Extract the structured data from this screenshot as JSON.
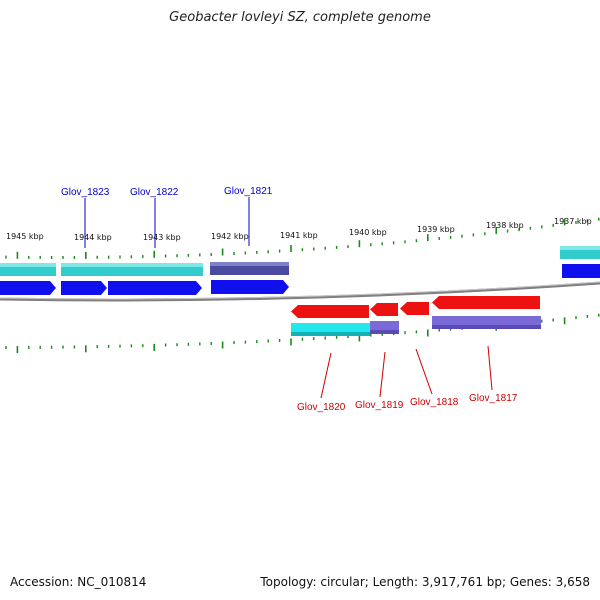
{
  "title": "Geobacter lovleyi SZ, complete genome",
  "footer": {
    "accession": "Accession: NC_010814",
    "summary": "Topology: circular; Length: 3,917,761 bp; Genes: 3,658"
  },
  "colors": {
    "top_label": "#0000cc",
    "bottom_label": "#cc0000",
    "tick": "#1a8a1a",
    "backbone": "#808080",
    "cyan": "#33cccc",
    "blue": "#1010ee",
    "navy": "#4a4aa0",
    "red": "#ee1111",
    "bright_cyan": "#22e8ee",
    "lavender": "#7a6ad8"
  },
  "kbp_labels": [
    "1945 kbp",
    "1944 kbp",
    "1943 kbp",
    "1942 kbp",
    "1941 kbp",
    "1940 kbp",
    "1939 kbp",
    "1938 kbp",
    "1937 kbp"
  ],
  "top_genes": [
    "Glov_1823",
    "Glov_1822",
    "Glov_1821"
  ],
  "bottom_genes": [
    "Glov_1820",
    "Glov_1819",
    "Glov_1818",
    "Glov_1817"
  ]
}
